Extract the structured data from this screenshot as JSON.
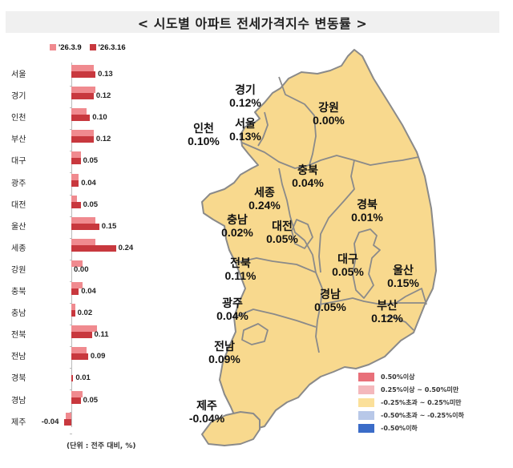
{
  "title": "< 시도별 아파트 전세가격지수 변동률 >",
  "bar_legend": [
    {
      "label": "'26.3.9",
      "color": "#f08a8f"
    },
    {
      "label": "'26.3.16",
      "color": "#c8383e"
    }
  ],
  "unit_note": "(단위 : 전주 대비, %)",
  "map_labels": [
    {
      "name": "경기",
      "value": "0.12%"
    },
    {
      "name": "강원",
      "value": "0.00%"
    },
    {
      "name": "인천",
      "value": "0.10%"
    },
    {
      "name": "서울",
      "value": "0.13%"
    },
    {
      "name": "충북",
      "value": "0.04%"
    },
    {
      "name": "세종",
      "value": "0.24%"
    },
    {
      "name": "경북",
      "value": "0.01%"
    },
    {
      "name": "충남",
      "value": "0.02%"
    },
    {
      "name": "대전",
      "value": "0.05%"
    },
    {
      "name": "대구",
      "value": "0.05%"
    },
    {
      "name": "울산",
      "value": "0.15%"
    },
    {
      "name": "전북",
      "value": "0.11%"
    },
    {
      "name": "경남",
      "value": "0.05%"
    },
    {
      "name": "부산",
      "value": "0.12%"
    },
    {
      "name": "광주",
      "value": "0.04%"
    },
    {
      "name": "전남",
      "value": "0.09%"
    },
    {
      "name": "제주",
      "value": "-0.04%"
    }
  ],
  "map_legend": [
    {
      "label": "0.50%이상",
      "color": "#e8707a"
    },
    {
      "label": "0.25%이상 ~ 0.50%미만",
      "color": "#f4b8bc"
    },
    {
      "label": "-0.25%초과 ~ 0.25%미만",
      "color": "#fbe09a"
    },
    {
      "label": "-0.50%초과 ~ -0.25%이하",
      "color": "#b8c8e8"
    },
    {
      "label": "-0.50%이하",
      "color": "#3b6cc8"
    }
  ],
  "colors": {
    "map_fill": "#f8d98e",
    "map_border": "#8a8a8a"
  },
  "chart_data": {
    "type": "bar",
    "orientation": "horizontal",
    "title": "시도별 아파트 전세가격지수 변동률",
    "xlabel": "전주 대비, %",
    "categories": [
      "서울",
      "경기",
      "인천",
      "부산",
      "대구",
      "광주",
      "대전",
      "울산",
      "세종",
      "강원",
      "충북",
      "충남",
      "전북",
      "전남",
      "경북",
      "경남",
      "제주"
    ],
    "series": [
      {
        "name": "'26.3.9",
        "values": [
          0.12,
          0.13,
          0.08,
          0.12,
          0.05,
          0.04,
          0.03,
          0.13,
          0.13,
          0.06,
          0.06,
          0.02,
          0.14,
          0.08,
          0.0,
          0.06,
          -0.03
        ]
      },
      {
        "name": "'26.3.16",
        "values": [
          0.13,
          0.12,
          0.1,
          0.12,
          0.05,
          0.04,
          0.05,
          0.15,
          0.24,
          0.0,
          0.04,
          0.02,
          0.11,
          0.09,
          0.01,
          0.05,
          -0.04
        ]
      }
    ],
    "data_labels": [
      "0.13",
      "0.12",
      "0.10",
      "0.12",
      "0.05",
      "0.04",
      "0.05",
      "0.15",
      "0.24",
      "0.00",
      "0.04",
      "0.02",
      "0.11",
      "0.09",
      "0.01",
      "0.05",
      "-0.04"
    ],
    "legend_position": "top",
    "grid": false
  }
}
